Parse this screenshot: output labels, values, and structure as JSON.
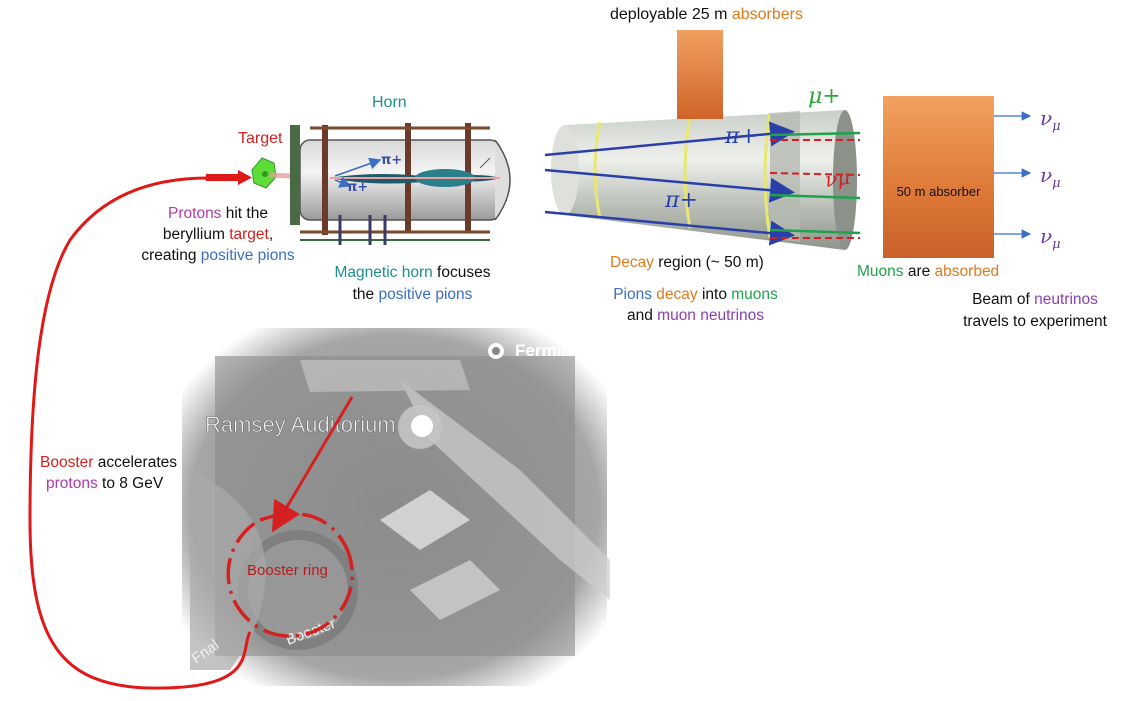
{
  "top": {
    "deployable_prefix": "deployable 25 m ",
    "deployable_highlight": "absorbers"
  },
  "target": {
    "label": "Target"
  },
  "horn": {
    "label": "Horn",
    "pion_labels": [
      "π+",
      "π+"
    ],
    "desc_line1_hl": "Magnetic horn",
    "desc_line1_rest": " focuses",
    "desc_line2_pre": "the ",
    "desc_line2_hl": "positive pions"
  },
  "protons": {
    "line1_hl": "Protons",
    "line1_rest": " hit the",
    "line2_pre": "beryllium ",
    "line2_hl": "target",
    "line2_post": ",",
    "line3_pre": "creating ",
    "line3_hl": "positive pions"
  },
  "decay": {
    "line_hl": "Decay",
    "line_rest": " region (~ 50 m)",
    "pions_hl": "Pions",
    "decay_hl": "decay",
    "into": " into ",
    "muons_hl": "muons",
    "and": "and ",
    "muon_nu_hl": "muon neutrinos",
    "pion_labels": [
      "π+",
      "π+"
    ],
    "mu_label": "μ+",
    "nu_label": "νμ"
  },
  "absorber": {
    "box_label": "50 m absorber",
    "muons_hl": "Muons",
    "are": " are ",
    "absorbed_hl": "absorbed"
  },
  "beam": {
    "line1_pre": "Beam of ",
    "line1_hl": "neutrinos",
    "line2": "travels to experiment",
    "nu_labels": [
      "ν",
      "ν",
      "ν"
    ],
    "nu_sub": "μ"
  },
  "booster": {
    "line1_hl": "Booster",
    "line1_rest": " accelerates",
    "line2_hl": "protons",
    "line2_rest": " to  8 GeV",
    "ring_label": "Booster ring"
  },
  "map": {
    "fermilab": "Fermilab",
    "ramsey": "Ramsey Auditorium",
    "road1": "Booster",
    "road2": "Fnal"
  },
  "colors": {
    "orange": "#e07a1f",
    "red": "#d42020",
    "blue": "#3a6fc4",
    "teal": "#1f8f8f",
    "green": "#1ea34a",
    "purple": "#8a3fb0",
    "magenta": "#b03aa8"
  }
}
